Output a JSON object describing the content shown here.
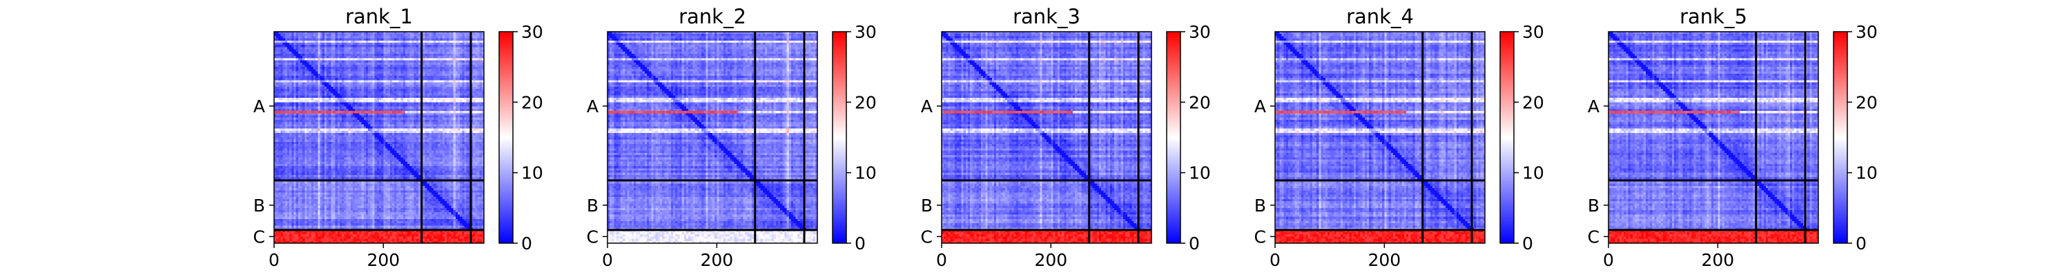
{
  "figure": {
    "type": "heatmap",
    "colormap": [
      "#0000ff",
      "#ffffff",
      "#ff0000"
    ]
  },
  "chart_data": [
    {
      "type": "heatmap",
      "title": "rank_1",
      "xticks": [
        0,
        200
      ],
      "ytick_labels": [
        "A",
        "B",
        "C"
      ],
      "colorbar": {
        "min": 0,
        "max": 30,
        "ticks": [
          0,
          10,
          20,
          30
        ]
      },
      "matrix_size": 384,
      "chain_boundaries": [
        270,
        360
      ],
      "cell_range": [
        0,
        30
      ],
      "c_row_values": [
        26,
        30
      ]
    },
    {
      "type": "heatmap",
      "title": "rank_2",
      "xticks": [
        0,
        200
      ],
      "ytick_labels": [
        "A",
        "B",
        "C"
      ],
      "colorbar": {
        "min": 0,
        "max": 30,
        "ticks": [
          0,
          10,
          20,
          30
        ]
      },
      "matrix_size": 384,
      "chain_boundaries": [
        270,
        360
      ],
      "cell_range": [
        0,
        30
      ],
      "c_row_values": [
        12,
        16
      ]
    },
    {
      "type": "heatmap",
      "title": "rank_3",
      "xticks": [
        0,
        200
      ],
      "ytick_labels": [
        "A",
        "B",
        "C"
      ],
      "colorbar": {
        "min": 0,
        "max": 30,
        "ticks": [
          0,
          10,
          20,
          30
        ]
      },
      "matrix_size": 384,
      "chain_boundaries": [
        270,
        360
      ],
      "cell_range": [
        0,
        30
      ],
      "c_row_values": [
        26,
        30
      ]
    },
    {
      "type": "heatmap",
      "title": "rank_4",
      "xticks": [
        0,
        200
      ],
      "ytick_labels": [
        "A",
        "B",
        "C"
      ],
      "colorbar": {
        "min": 0,
        "max": 30,
        "ticks": [
          0,
          10,
          20,
          30
        ]
      },
      "matrix_size": 384,
      "chain_boundaries": [
        270,
        360
      ],
      "cell_range": [
        0,
        30
      ],
      "c_row_values": [
        26,
        30
      ]
    },
    {
      "type": "heatmap",
      "title": "rank_5",
      "xticks": [
        0,
        200
      ],
      "ytick_labels": [
        "A",
        "B",
        "C"
      ],
      "colorbar": {
        "min": 0,
        "max": 30,
        "ticks": [
          0,
          10,
          20,
          30
        ]
      },
      "matrix_size": 384,
      "chain_boundaries": [
        270,
        360
      ],
      "cell_range": [
        0,
        30
      ],
      "c_row_values": [
        26,
        30
      ]
    }
  ]
}
